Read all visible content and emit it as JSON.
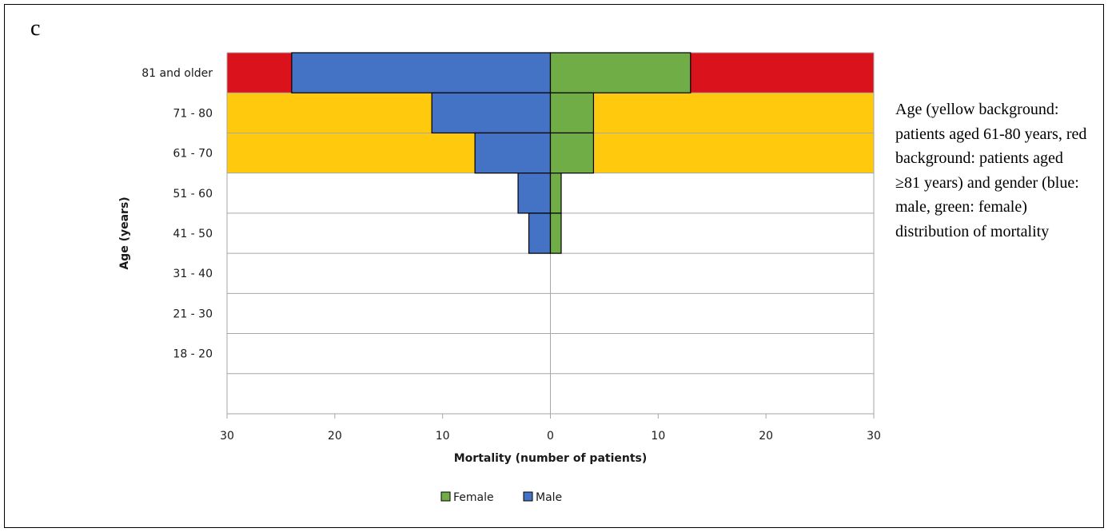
{
  "panel_label": "c",
  "caption": "Age (yellow background: patients aged 61-80 years, red background: patients aged ≥81 years) and gender (blue: male, green: female) distribution of mortality",
  "colors": {
    "male": "#4472C4",
    "female": "#70AD47",
    "band_61_80": "#FFC90E",
    "band_81_plus": "#D9121B",
    "grid": "#A6A6A6"
  },
  "chart_data": {
    "type": "bar",
    "orientation": "horizontal",
    "layout": "population-pyramid",
    "categories": [
      "81 and older",
      "71 - 80",
      "61 - 70",
      "51 - 60",
      "41 - 50",
      "31 - 40",
      "21 - 30",
      "18 - 20",
      ""
    ],
    "series": [
      {
        "name": "Male",
        "side": "left",
        "values": [
          24,
          11,
          7,
          3,
          2,
          0,
          0,
          0,
          0
        ]
      },
      {
        "name": "Female",
        "side": "right",
        "values": [
          13,
          4,
          4,
          1,
          1,
          0,
          0,
          0,
          0
        ]
      }
    ],
    "background_bands": [
      {
        "category": "81 and older",
        "color": "#D9121B"
      },
      {
        "category": "71 - 80",
        "color": "#FFC90E"
      },
      {
        "category": "61 - 70",
        "color": "#FFC90E"
      }
    ],
    "xlim": [
      -30,
      30
    ],
    "x_ticks": [
      -30,
      -20,
      -10,
      0,
      10,
      20,
      30
    ],
    "x_tick_labels": [
      "30",
      "20",
      "10",
      "0",
      "10",
      "20",
      "30"
    ],
    "xlabel": "Mortality (number of patients)",
    "ylabel": "Age (years)",
    "grid": true,
    "legend": {
      "position": "bottom",
      "entries": [
        "Female",
        "Male"
      ]
    }
  }
}
